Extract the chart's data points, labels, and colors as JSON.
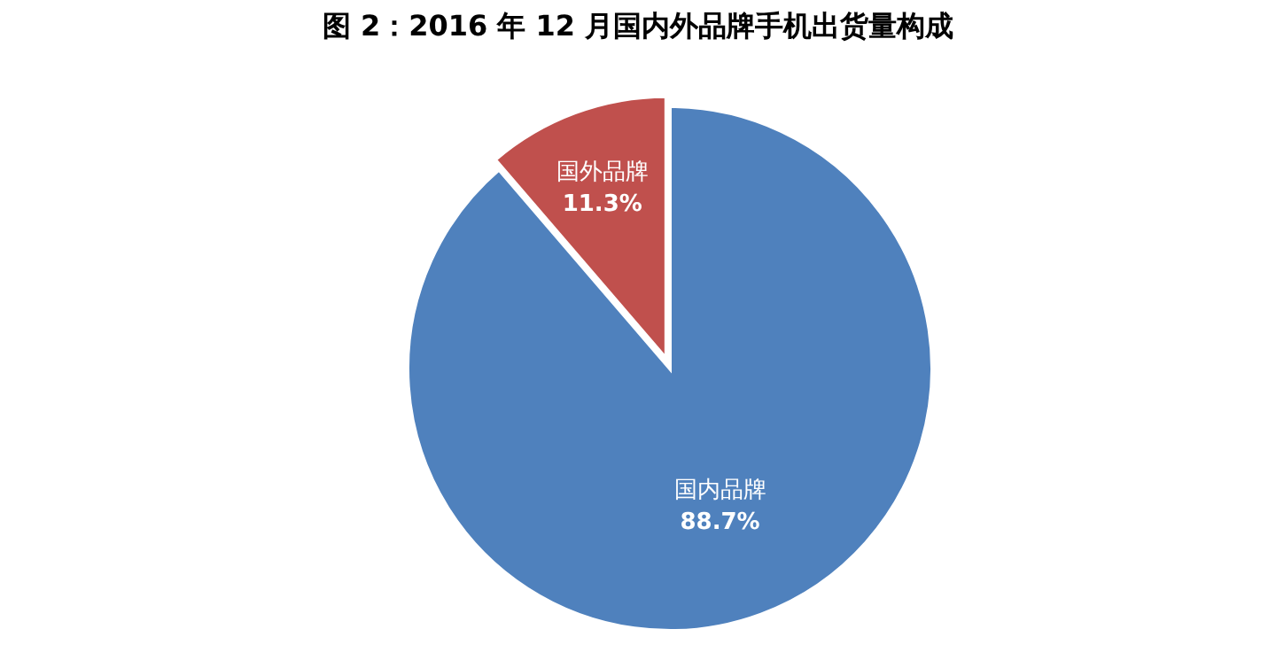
{
  "chart_data": {
    "type": "pie",
    "title": "图 2：2016 年 12 月国内外品牌手机出货量构成",
    "categories": [
      "国内品牌",
      "国外品牌"
    ],
    "values": [
      88.7,
      11.3
    ],
    "colors": [
      "#4f81bd",
      "#c0504d"
    ],
    "value_labels": [
      "88.7%",
      "11.3%"
    ]
  }
}
